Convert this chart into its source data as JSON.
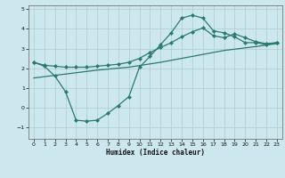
{
  "title": "",
  "xlabel": "Humidex (Indice chaleur)",
  "ylabel": "",
  "bg_color": "#cce8ee",
  "grid_color": "#aacccc",
  "line_color": "#2a7a6e",
  "xlim": [
    -0.5,
    23.5
  ],
  "ylim": [
    -1.6,
    5.2
  ],
  "yticks": [
    -1,
    0,
    1,
    2,
    3,
    4,
    5
  ],
  "xticks": [
    0,
    1,
    2,
    3,
    4,
    5,
    6,
    7,
    8,
    9,
    10,
    11,
    12,
    13,
    14,
    15,
    16,
    17,
    18,
    19,
    20,
    21,
    22,
    23
  ],
  "line1_x": [
    0,
    1,
    2,
    3,
    4,
    5,
    6,
    7,
    8,
    9,
    10,
    11,
    12,
    13,
    14,
    15,
    16,
    17,
    18,
    19,
    20,
    21,
    22,
    23
  ],
  "line1_y": [
    2.3,
    2.1,
    1.6,
    0.8,
    -0.65,
    -0.7,
    -0.65,
    -0.3,
    0.1,
    0.55,
    2.05,
    2.6,
    3.2,
    3.8,
    4.55,
    4.7,
    4.55,
    3.9,
    3.8,
    3.6,
    3.3,
    3.3,
    3.2,
    3.3
  ],
  "line2_x": [
    0,
    3,
    6,
    9,
    12,
    15,
    18,
    21,
    23
  ],
  "line2_y": [
    1.5,
    1.7,
    1.9,
    2.05,
    2.3,
    2.6,
    2.9,
    3.1,
    3.25
  ],
  "line3_x": [
    0,
    1,
    2,
    3,
    4,
    5,
    6,
    7,
    8,
    9,
    10,
    11,
    12,
    13,
    14,
    15,
    16,
    17,
    18,
    19,
    20,
    21,
    22,
    23
  ],
  "line3_y": [
    2.3,
    2.15,
    2.1,
    2.05,
    2.05,
    2.05,
    2.1,
    2.15,
    2.2,
    2.3,
    2.5,
    2.8,
    3.05,
    3.3,
    3.6,
    3.85,
    4.05,
    3.65,
    3.55,
    3.75,
    3.55,
    3.35,
    3.25,
    3.3
  ]
}
